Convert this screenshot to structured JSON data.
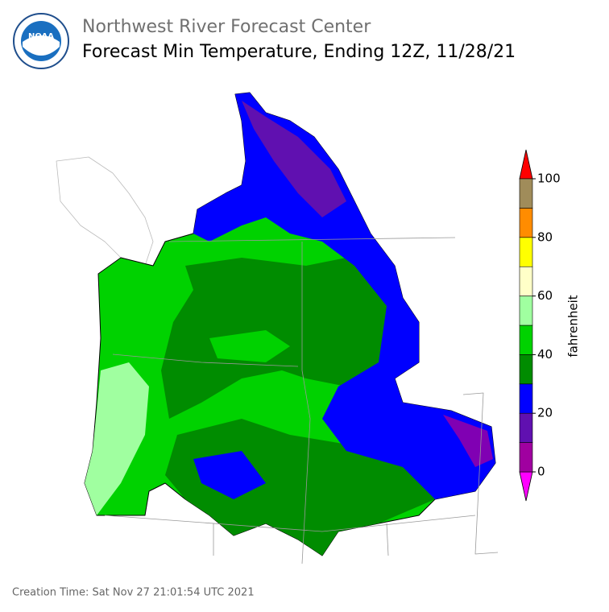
{
  "header": {
    "org": "Northwest River Forecast Center",
    "title": "Forecast Min Temperature, Ending 12Z, 11/28/21",
    "logo": "NOAA"
  },
  "colorbar": {
    "label": "fahrenheit",
    "bounds": [
      0,
      10,
      20,
      30,
      40,
      50,
      60,
      70,
      80,
      90,
      100
    ],
    "colors": [
      "#a000a0",
      "#6010b0",
      "#0000ff",
      "#008c00",
      "#00d200",
      "#a0ffa0",
      "#ffffc8",
      "#ffff00",
      "#ff8c00",
      "#a08c5a"
    ],
    "under_color": "#ff00ff",
    "over_color": "#ff0000",
    "ticks": [
      0,
      20,
      40,
      60,
      80,
      100
    ]
  },
  "footer": {
    "creation": "Creation Time: Sat Nov 27 21:01:54 UTC 2021"
  }
}
